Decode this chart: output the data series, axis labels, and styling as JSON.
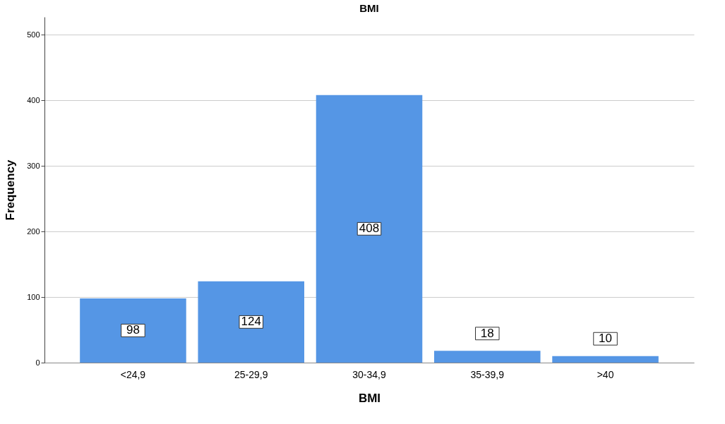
{
  "chart_data": {
    "type": "bar",
    "title": "BMI",
    "xlabel": "BMI",
    "ylabel": "Frequency",
    "categories": [
      "<24,9",
      "25-29,9",
      "30-34,9",
      "35-39,9",
      ">40"
    ],
    "values": [
      98,
      124,
      408,
      18,
      10
    ],
    "color": "#5596e5",
    "ylim": [
      0,
      527
    ],
    "yticks": [
      0,
      100,
      200,
      300,
      400,
      500
    ],
    "grid": "y",
    "data_labels": true
  }
}
